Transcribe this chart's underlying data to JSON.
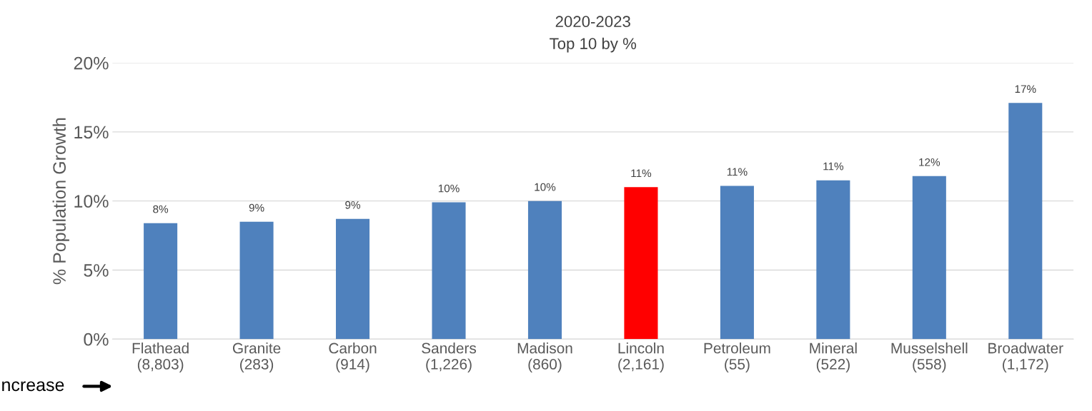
{
  "chart_data": {
    "type": "bar",
    "title": "2020-2023",
    "subtitle": "Top 10 by %",
    "ylabel": "% Population Growth",
    "categories": [
      "Flathead\n(8,803)",
      "Granite\n(283)",
      "Carbon\n(914)",
      "Sanders\n(1,226)",
      "Madison\n(860)",
      "Lincoln\n(2,161)",
      "Petroleum\n(55)",
      "Mineral\n(522)",
      "Musselshell\n(558)",
      "Broadwater\n(1,172)"
    ],
    "values": [
      8.4,
      8.5,
      8.7,
      9.9,
      10.0,
      11.0,
      11.1,
      11.5,
      11.8,
      17.1
    ],
    "colors": [
      "#4f81bd",
      "#4f81bd",
      "#4f81bd",
      "#4f81bd",
      "#4f81bd",
      "#ff0000",
      "#4f81bd",
      "#4f81bd",
      "#4f81bd",
      "#4f81bd"
    ],
    "value_labels": [
      "8%",
      "9%",
      "9%",
      "10%",
      "10%",
      "11%",
      "11%",
      "11%",
      "12%",
      "17%"
    ],
    "ylim": [
      0,
      20
    ],
    "yticks": [
      {
        "value": 0,
        "label": "0%"
      },
      {
        "value": 5,
        "label": "5%"
      },
      {
        "value": 10,
        "label": "10%"
      },
      {
        "value": 15,
        "label": "15%"
      },
      {
        "value": 20,
        "label": "20%"
      }
    ],
    "grid": "y",
    "legend": false,
    "annotations": [
      "ncrease"
    ]
  }
}
